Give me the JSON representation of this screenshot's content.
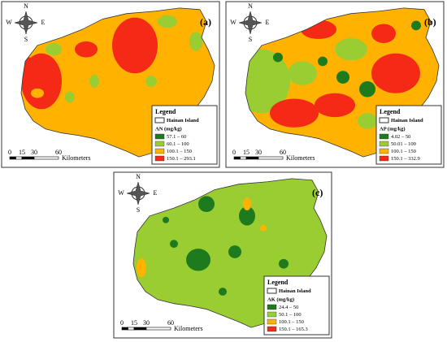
{
  "panels": [
    {
      "label": "(a)",
      "legend_title": "Legend",
      "boundary": "Hainan Island",
      "variable": "AN (mg/kg)",
      "classes": [
        {
          "label": "57.1 – 60",
          "color": "#1d7a1d"
        },
        {
          "label": "60.1 – 100",
          "color": "#9acd32"
        },
        {
          "label": "100.1 – 150",
          "color": "#ffb300"
        },
        {
          "label": "150.1 – 293.1",
          "color": "#f42a17"
        }
      ],
      "scale_labels": [
        "0",
        "15",
        "30",
        "60"
      ],
      "scale_unit": "Kilometers",
      "compass": [
        "N",
        "S",
        "W",
        "E"
      ]
    },
    {
      "label": "(b)",
      "legend_title": "Legend",
      "boundary": "Hainan Island",
      "variable": "AP (mg/kg)",
      "classes": [
        {
          "label": "4.02 – 50",
          "color": "#1d7a1d"
        },
        {
          "label": "50.01 – 100",
          "color": "#9acd32"
        },
        {
          "label": "100.1 – 150",
          "color": "#ffb300"
        },
        {
          "label": "150.1 – 332.9",
          "color": "#f42a17"
        }
      ],
      "scale_labels": [
        "0",
        "15",
        "30",
        "60"
      ],
      "scale_unit": "Kilometers",
      "compass": [
        "N",
        "S",
        "W",
        "E"
      ]
    },
    {
      "label": "(c)",
      "legend_title": "Legend",
      "boundary": "Hainan Island",
      "variable": "AK (mg/kg)",
      "classes": [
        {
          "label": "24.4 – 50",
          "color": "#1d7a1d"
        },
        {
          "label": "50.1 – 100",
          "color": "#9acd32"
        },
        {
          "label": "100.1 – 150",
          "color": "#ffb300"
        },
        {
          "label": "150.1 – 165.3",
          "color": "#f42a17"
        }
      ],
      "scale_labels": [
        "0",
        "15",
        "30",
        "60"
      ],
      "scale_unit": "Kilometers",
      "compass": [
        "N",
        "S",
        "W",
        "E"
      ]
    }
  ]
}
